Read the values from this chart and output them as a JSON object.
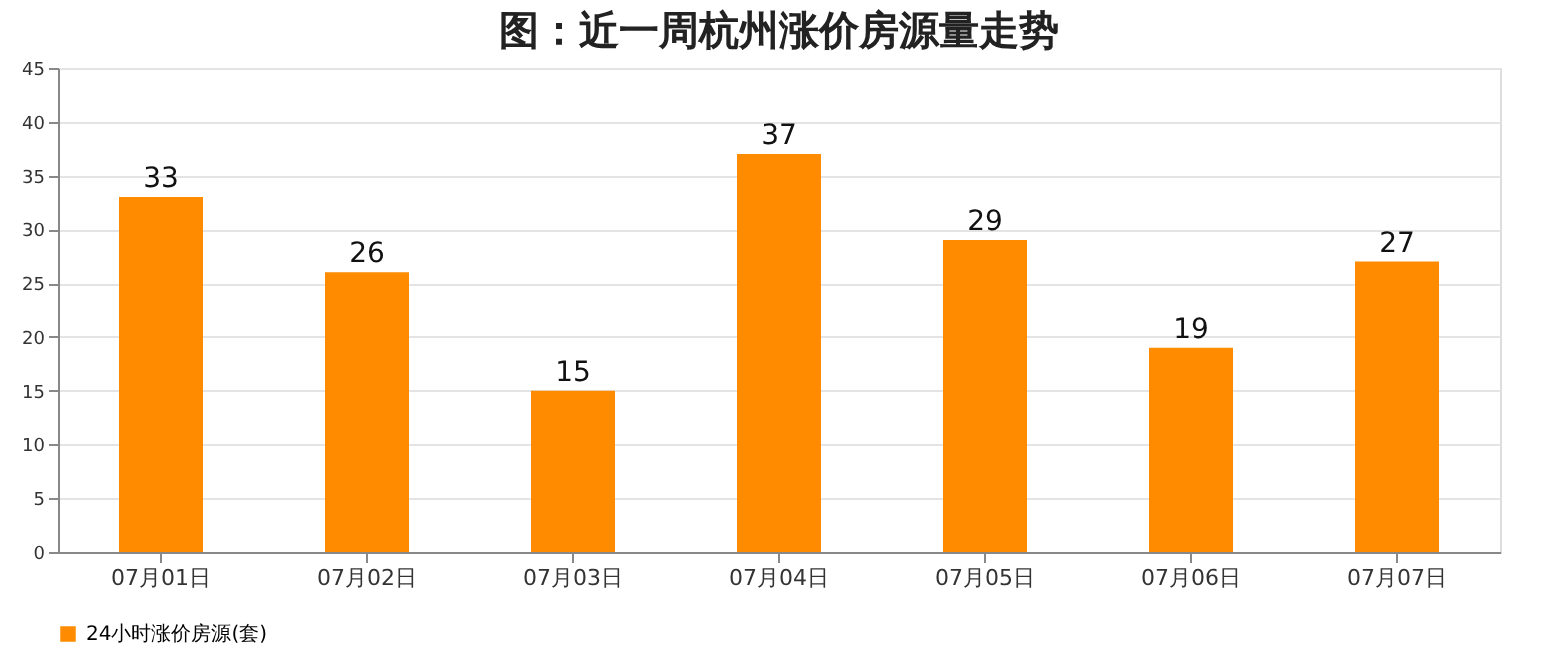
{
  "chart_data": {
    "type": "bar",
    "title": "图：近一周杭州涨价房源量走势",
    "categories": [
      "07月01日",
      "07月02日",
      "07月03日",
      "07月04日",
      "07月05日",
      "07月06日",
      "07月07日"
    ],
    "series": [
      {
        "name": "24小时涨价房源(套)",
        "color": "#ff8c00",
        "values": [
          33,
          26,
          15,
          37,
          29,
          19,
          27
        ]
      }
    ],
    "ylim": [
      0,
      45
    ],
    "yticks": [
      0,
      5,
      10,
      15,
      20,
      25,
      30,
      35,
      40,
      45
    ],
    "grid": "y",
    "legend": "bottom",
    "data_labels": true
  }
}
